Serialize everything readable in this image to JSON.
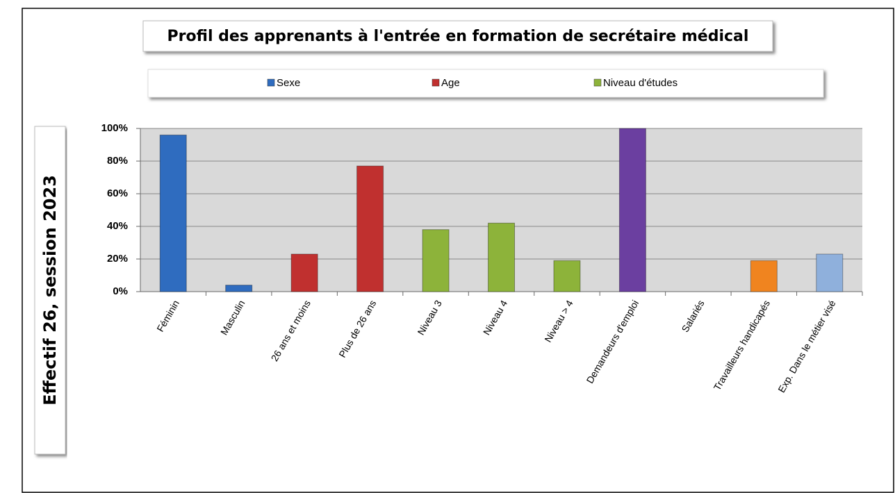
{
  "chart_data": {
    "type": "bar",
    "title": "Profil des apprenants à l'entrée en formation de secrétaire médical",
    "side_label": "Effectif  26, session 2023",
    "legend": [
      {
        "name": "Sexe",
        "color": "#2f6cbf"
      },
      {
        "name": "Age",
        "color": "#c0302f"
      },
      {
        "name": "Niveau d'études",
        "color": "#8db33a"
      }
    ],
    "categories": [
      "Féminin",
      "Masculin",
      "26 ans et moins",
      "Plus de 26 ans",
      "Niveau 3",
      "Niveau 4",
      "Niveau > 4",
      "Demandeurs d'emploi",
      "Salariés",
      "Travailleurs handicapés",
      "Exp. Dans le métier visé"
    ],
    "values": [
      96,
      4,
      23,
      77,
      38,
      42,
      19,
      100,
      0,
      19,
      23
    ],
    "colors": [
      "#2f6cbf",
      "#2f6cbf",
      "#c0302f",
      "#c0302f",
      "#8db33a",
      "#8db33a",
      "#8db33a",
      "#6b3fa0",
      "#6b3fa0",
      "#f0841f",
      "#8fb0dc"
    ],
    "ylim": [
      0,
      100
    ],
    "yticks": [
      {
        "value": 0,
        "label": "0%"
      },
      {
        "value": 20,
        "label": "20%"
      },
      {
        "value": 40,
        "label": "40%"
      },
      {
        "value": 60,
        "label": "60%"
      },
      {
        "value": 80,
        "label": "80%"
      },
      {
        "value": 100,
        "label": "100%"
      }
    ],
    "grid": true
  }
}
